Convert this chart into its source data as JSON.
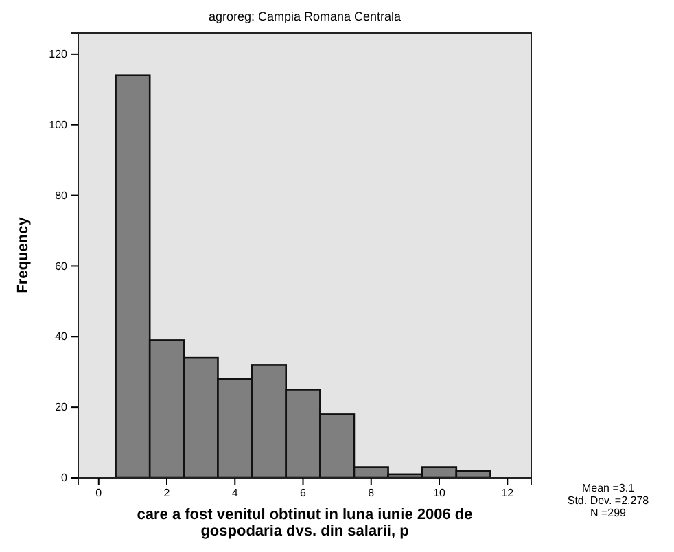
{
  "chart_data": {
    "type": "histogram",
    "title": "agroreg: Campia Romana Centrala",
    "xlabel": "care a fost venitul obtinut in luna iunie 2006 de gospodaria dvs. din salarii, p",
    "ylabel": "Frequency",
    "bins": [
      0.5,
      1.5,
      2.5,
      3.5,
      4.5,
      5.5,
      6.5,
      7.5,
      8.5,
      9.5,
      10.5,
      11.5
    ],
    "values": [
      114,
      39,
      34,
      28,
      32,
      25,
      18,
      3,
      1,
      3,
      2
    ],
    "color": "#7f7f7f",
    "xlim": [
      -0.6,
      12.7
    ],
    "xticks": [
      0,
      2,
      4,
      6,
      8,
      10,
      12
    ],
    "ylim": [
      0,
      126
    ],
    "yticks": [
      0,
      20,
      40,
      60,
      80,
      100,
      120
    ],
    "grid": false,
    "annotations": [
      "Mean =3.1",
      "Std. Dev. =2.278",
      "N =299"
    ]
  }
}
